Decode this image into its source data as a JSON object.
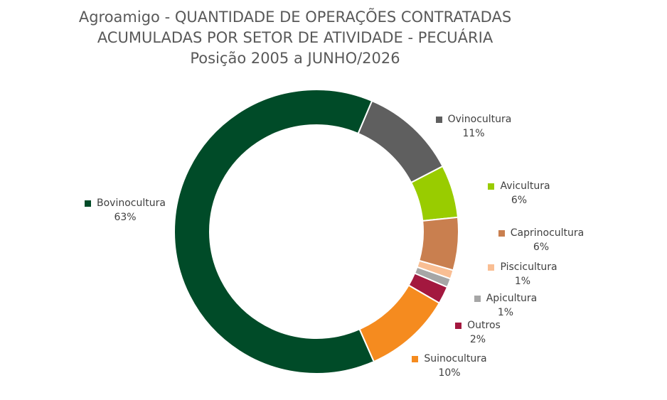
{
  "chart_data": {
    "type": "pie",
    "title_lines": [
      "Agroamigo - QUANTIDADE DE OPERAÇÕES CONTRATADAS",
      "ACUMULADAS POR SETOR DE ATIVIDADE - PECUÁRIA",
      "Posição 2005 a JUNHO/2026"
    ],
    "donut": true,
    "slices": [
      {
        "name": "Ovinocultura",
        "value": 11,
        "label": "11%",
        "color": "#5f5f5f"
      },
      {
        "name": "Avicultura",
        "value": 6,
        "label": "6%",
        "color": "#99cc00"
      },
      {
        "name": "Caprinocultura",
        "value": 6,
        "label": "6%",
        "color": "#c97f4f"
      },
      {
        "name": "Piscicultura",
        "value": 1,
        "label": "1%",
        "color": "#f9be93"
      },
      {
        "name": "Apicultura",
        "value": 1,
        "label": "1%",
        "color": "#a6a6a6"
      },
      {
        "name": "Outros",
        "value": 2,
        "label": "2%",
        "color": "#a3183f"
      },
      {
        "name": "Suinocultura",
        "value": 10,
        "label": "10%",
        "color": "#f58b1f"
      },
      {
        "name": "Bovinocultura",
        "value": 63,
        "label": "63%",
        "color": "#004b28"
      }
    ]
  }
}
